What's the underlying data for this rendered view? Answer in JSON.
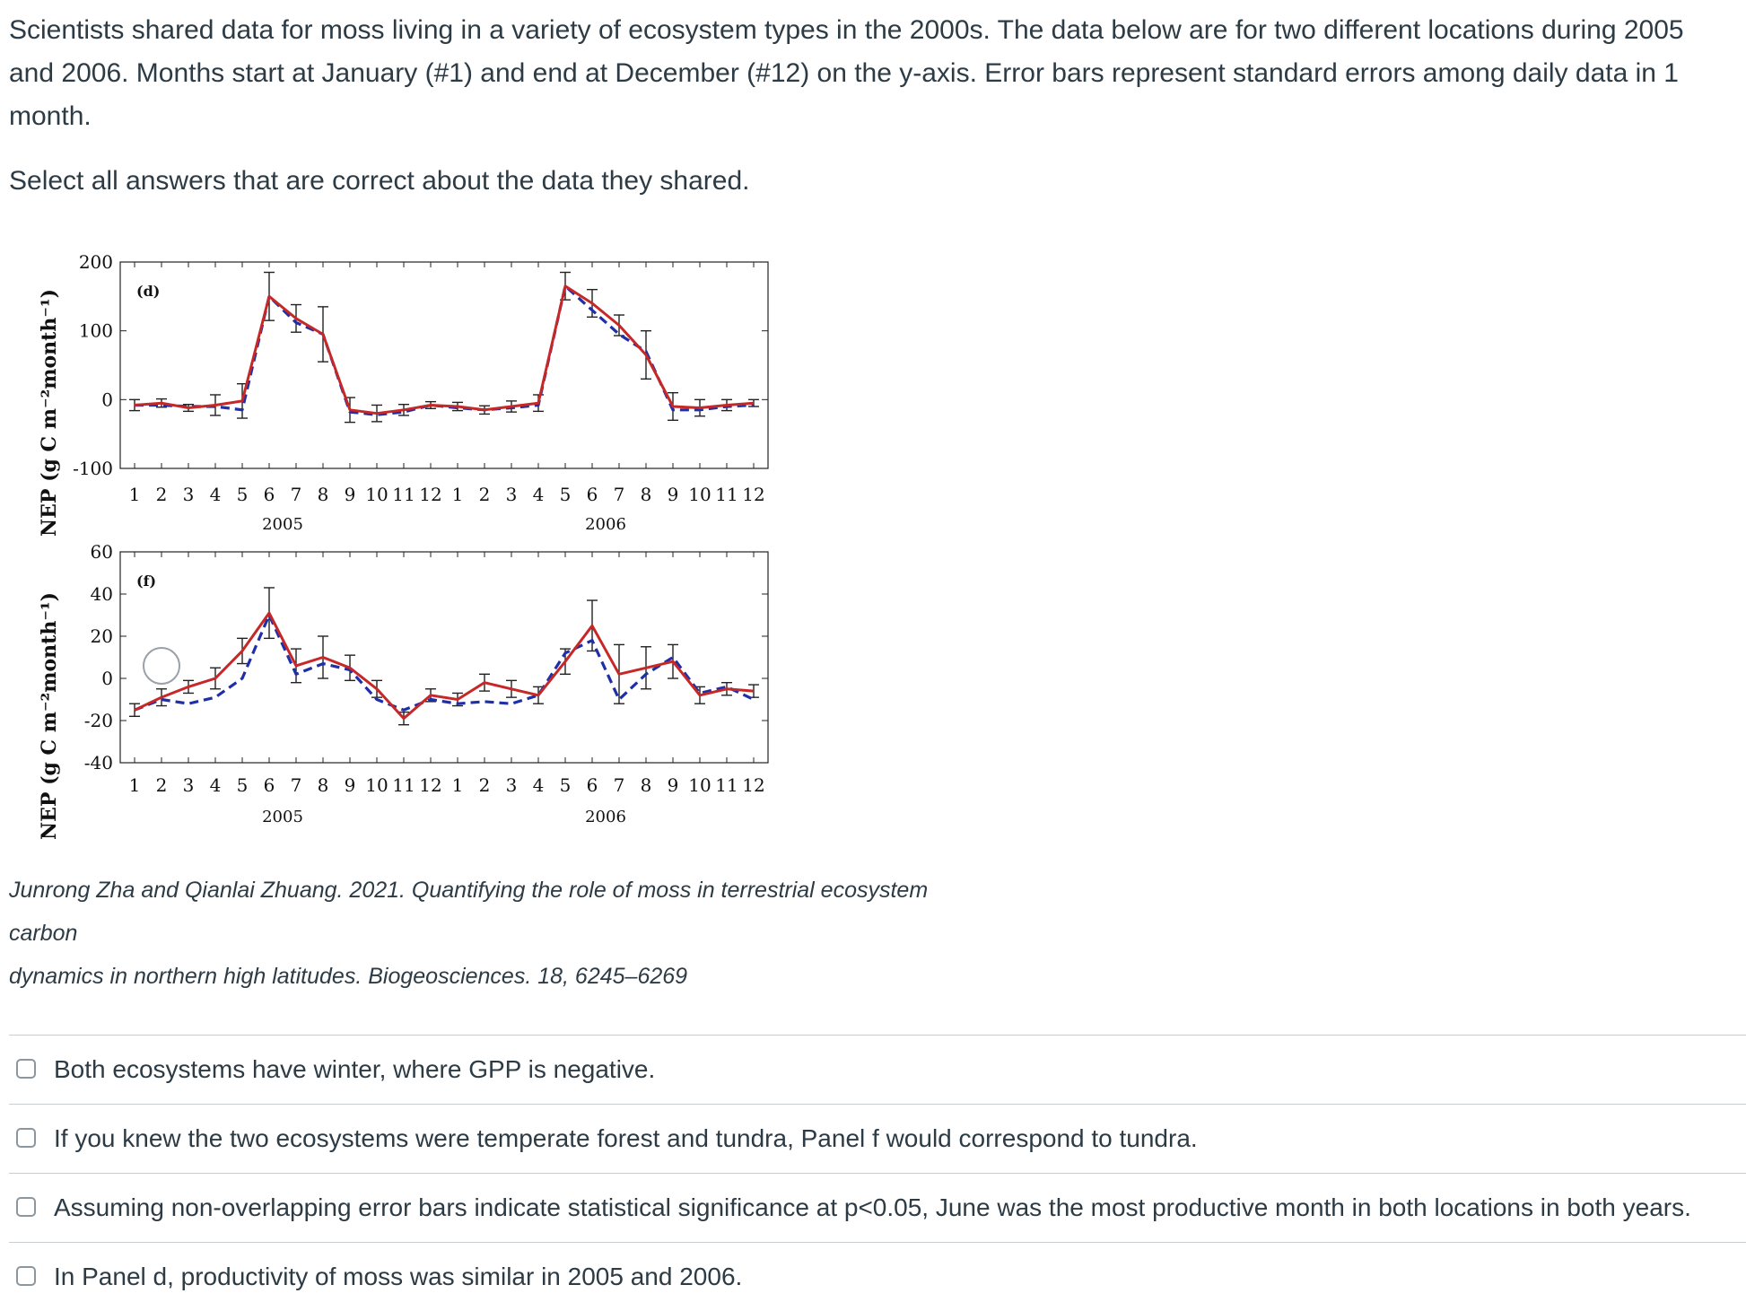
{
  "question": {
    "paragraph1": "Scientists shared data for moss living in a variety of ecosystem types in the 2000s.  The data below are for two different locations during 2005 and 2006. Months start at January (#1) and end at December (#12) on the y-axis. Error bars represent standard errors among daily data in 1 month.",
    "paragraph2": "Select all answers that are correct about the data they shared."
  },
  "figure": {
    "ylabel": "NEP (g C m⁻²month⁻¹)",
    "month_ticks": [
      "1",
      "2",
      "3",
      "4",
      "5",
      "6",
      "7",
      "8",
      "9",
      "10",
      "11",
      "12",
      "1",
      "2",
      "3",
      "4",
      "5",
      "6",
      "7",
      "8",
      "9",
      "10",
      "11",
      "12"
    ]
  },
  "chart_data": [
    {
      "type": "line",
      "panel_label": "(d)",
      "ylabel": "NEP (g C m⁻²month⁻¹)",
      "ylim": [
        -100,
        200
      ],
      "yticks": [
        "200",
        "100",
        "0",
        "-100"
      ],
      "year_labels": [
        "2005",
        "2006"
      ],
      "categories": [
        "1",
        "2",
        "3",
        "4",
        "5",
        "6",
        "7",
        "8",
        "9",
        "10",
        "11",
        "12",
        "1",
        "2",
        "3",
        "4",
        "5",
        "6",
        "7",
        "8",
        "9",
        "10",
        "11",
        "12"
      ],
      "series": [
        {
          "name": "red-solid",
          "color": "#c62828",
          "values": [
            -8,
            -5,
            -12,
            -8,
            -2,
            150,
            118,
            95,
            -15,
            -20,
            -15,
            -8,
            -10,
            -15,
            -10,
            -5,
            165,
            140,
            108,
            65,
            -10,
            -12,
            -8,
            -5
          ]
        },
        {
          "name": "blue-dashed",
          "color": "#1f2fa8",
          "values": [
            -8,
            -8,
            -10,
            -10,
            -15,
            150,
            112,
            95,
            -18,
            -22,
            -18,
            -8,
            -12,
            -15,
            -12,
            -8,
            165,
            130,
            95,
            70,
            -15,
            -15,
            -10,
            -8
          ]
        }
      ],
      "error_bars": [
        8,
        6,
        5,
        15,
        25,
        35,
        20,
        40,
        18,
        12,
        8,
        5,
        6,
        6,
        8,
        12,
        20,
        20,
        15,
        35,
        20,
        12,
        8,
        5
      ]
    },
    {
      "type": "line",
      "panel_label": "(f)",
      "ylabel": "NEP (g C m⁻²month⁻¹)",
      "ylim": [
        -40,
        60
      ],
      "yticks": [
        "60",
        "40",
        "20",
        "0",
        "-20",
        "-40"
      ],
      "year_labels": [
        "2005",
        "2006"
      ],
      "categories": [
        "1",
        "2",
        "3",
        "4",
        "5",
        "6",
        "7",
        "8",
        "9",
        "10",
        "11",
        "12",
        "1",
        "2",
        "3",
        "4",
        "5",
        "6",
        "7",
        "8",
        "9",
        "10",
        "11",
        "12"
      ],
      "series": [
        {
          "name": "red-solid",
          "color": "#c62828",
          "values": [
            -15,
            -9,
            -4,
            0,
            13,
            31,
            6,
            10,
            5,
            -5,
            -19,
            -8,
            -10,
            -2,
            -5,
            -8,
            8,
            25,
            2,
            5,
            8,
            -8,
            -5,
            -6
          ]
        },
        {
          "name": "blue-dashed",
          "color": "#1f2fa8",
          "values": [
            -15,
            -10,
            -12,
            -9,
            0,
            30,
            2,
            7,
            4,
            -10,
            -15,
            -10,
            -12,
            -11,
            -12,
            -8,
            12,
            18,
            -10,
            2,
            10,
            -7,
            -4,
            -10
          ]
        }
      ],
      "error_bars": [
        3,
        4,
        3,
        5,
        6,
        12,
        8,
        10,
        6,
        4,
        3,
        3,
        3,
        4,
        4,
        4,
        6,
        12,
        14,
        10,
        8,
        4,
        3,
        3
      ]
    }
  ],
  "citation": {
    "line1": "Junrong Zha and Qianlai Zhuang. 2021. Quantifying the role of moss in terrestrial ecosystem carbon",
    "line2": "dynamics in northern high latitudes. Biogeosciences. 18, 6245–6269"
  },
  "answers": [
    {
      "label": "Both ecosystems have winter, where GPP is negative.",
      "checked": false
    },
    {
      "label": "If you knew the two ecosystems were temperate forest and tundra, Panel f would correspond to tundra.",
      "checked": false
    },
    {
      "label": "Assuming non-overlapping error bars indicate statistical significance at p<0.05, June was the most productive month in both locations in both years.",
      "checked": false
    },
    {
      "label": "In Panel d, productivity of moss was similar in 2005 and 2006.",
      "checked": false
    }
  ]
}
